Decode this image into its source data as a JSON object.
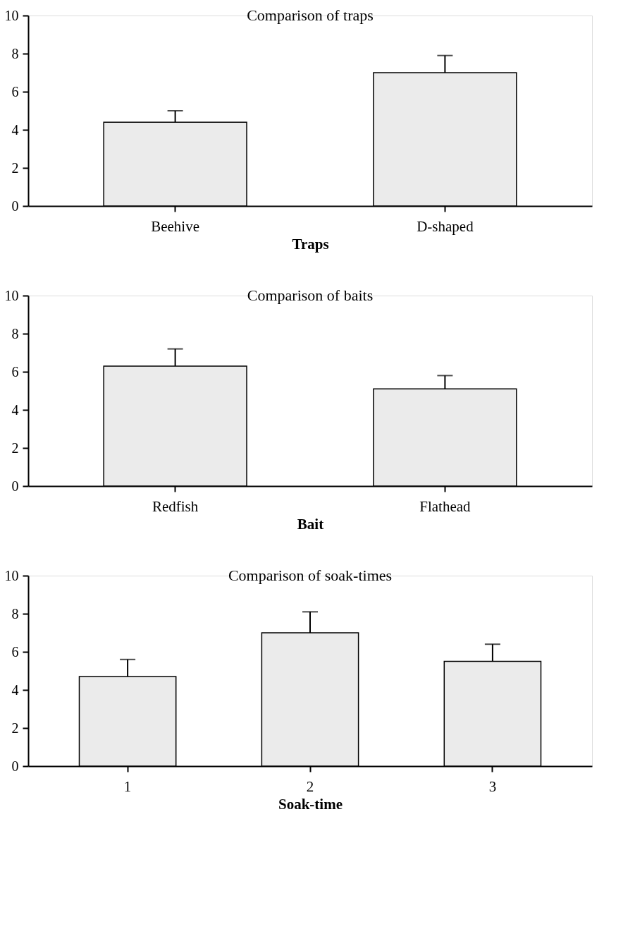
{
  "chart_data": [
    {
      "type": "bar",
      "title": "Comparison of traps",
      "xlabel": "Traps",
      "categories": [
        "Beehive",
        "D-shaped"
      ],
      "values": [
        4.4,
        7.0
      ],
      "errors": [
        [
          4.4,
          5.0
        ],
        [
          7.0,
          7.9
        ]
      ],
      "color": "#ebebeb",
      "ylim": [
        0,
        10
      ],
      "yticks": [
        0,
        2,
        4,
        6,
        8,
        10
      ],
      "grid": false
    },
    {
      "type": "bar",
      "title": "Comparison of baits",
      "xlabel": "Bait",
      "categories": [
        "Redfish",
        "Flathead"
      ],
      "values": [
        6.3,
        5.1
      ],
      "errors": [
        [
          6.3,
          7.2
        ],
        [
          5.1,
          5.8
        ]
      ],
      "color": "#ebebeb",
      "ylim": [
        0,
        10
      ],
      "yticks": [
        0,
        2,
        4,
        6,
        8,
        10
      ],
      "grid": false
    },
    {
      "type": "bar",
      "title": "Comparison of soak-times",
      "xlabel": "Soak-time",
      "categories": [
        "1",
        "2",
        "3"
      ],
      "values": [
        4.7,
        7.0,
        5.5
      ],
      "errors": [
        [
          4.7,
          5.6
        ],
        [
          7.0,
          8.1
        ],
        [
          5.5,
          6.4
        ]
      ],
      "color": "#ebebeb",
      "ylim": [
        0,
        10
      ],
      "yticks": [
        0,
        2,
        4,
        6,
        8,
        10
      ],
      "grid": false
    }
  ]
}
